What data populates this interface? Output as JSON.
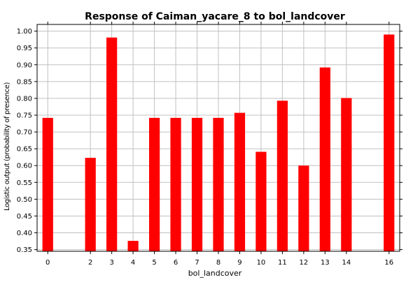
{
  "chart_data": {
    "type": "bar",
    "title": "Response of Caiman_yacare_8 to bol_landcover",
    "xlabel": "bol_landcover",
    "ylabel": "Logistic output (probability of presence)",
    "categories": [
      "0",
      "2",
      "3",
      "4",
      "5",
      "6",
      "7",
      "8",
      "9",
      "10",
      "11",
      "12",
      "13",
      "14",
      "16"
    ],
    "x": [
      0,
      2,
      3,
      4,
      5,
      6,
      7,
      8,
      9,
      10,
      11,
      12,
      13,
      14,
      16
    ],
    "values": [
      0.742,
      0.623,
      0.981,
      0.376,
      0.742,
      0.742,
      0.742,
      0.742,
      0.757,
      0.641,
      0.793,
      0.6,
      0.892,
      0.801,
      0.99
    ],
    "ylim": [
      0.345,
      1.02
    ],
    "xlim": [
      -0.5,
      16.5
    ],
    "yticks": [
      0.35,
      0.4,
      0.45,
      0.5,
      0.55,
      0.6,
      0.65,
      0.7,
      0.75,
      0.8,
      0.85,
      0.9,
      0.95,
      1.0
    ],
    "yticklabels": [
      "0.35",
      "0.40",
      "0.45",
      "0.50",
      "0.55",
      "0.60",
      "0.65",
      "0.70",
      "0.75",
      "0.80",
      "0.85",
      "0.90",
      "0.95",
      "1.00"
    ],
    "grid": true,
    "bar_color": "#ff0000",
    "grid_color": "#c0c0c0"
  }
}
